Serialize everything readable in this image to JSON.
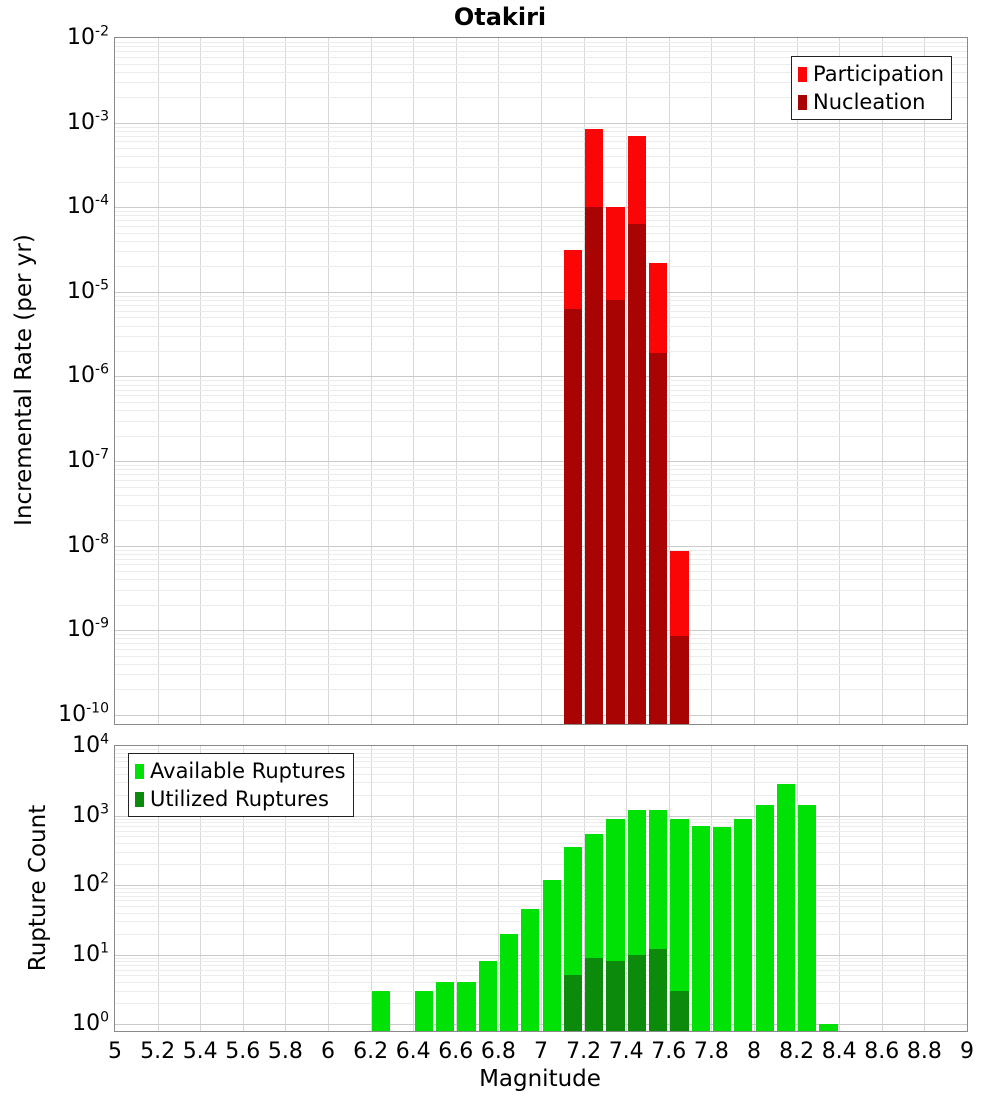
{
  "page": {
    "title": "Otakiri"
  },
  "axes": {
    "xlabel": "Magnitude",
    "x_tick_labels": [
      "5",
      "5.2",
      "5.4",
      "5.6",
      "5.8",
      "6",
      "6.2",
      "6.4",
      "6.6",
      "6.8",
      "7",
      "7.2",
      "7.4",
      "7.6",
      "7.8",
      "8",
      "8.2",
      "8.4",
      "8.6",
      "8.8",
      "9"
    ],
    "top_ylabel": "Incremental Rate (per yr)",
    "top_y_tick_exponents": [
      -2,
      -3,
      -4,
      -5,
      -6,
      -7,
      -8,
      -9,
      -10
    ],
    "bottom_ylabel": "Rupture Count",
    "bottom_y_tick_exponents": [
      4,
      3,
      2,
      1,
      0
    ]
  },
  "chart_data": [
    {
      "type": "bar",
      "title": "Otakiri",
      "xlabel": "Magnitude",
      "ylabel": "Incremental Rate (per yr)",
      "x_range": [
        5,
        9
      ],
      "y_range": [
        1e-10,
        0.01
      ],
      "y_scale": "log",
      "bin_width": 0.1,
      "grid": true,
      "legend_position": "top-right",
      "legend": [
        {
          "label": "Participation",
          "color": "#FB0607"
        },
        {
          "label": "Nucleation",
          "color": "#A80404"
        }
      ],
      "series": [
        {
          "name": "Participation",
          "color": "#FB0607",
          "bin_left_edges": [
            7.1,
            7.2,
            7.3,
            7.4,
            7.5,
            7.6
          ],
          "values": [
            3.1e-05,
            0.00085,
            0.0001,
            0.0007,
            2.2e-05,
            8.6e-09
          ]
        },
        {
          "name": "Nucleation",
          "color": "#A80404",
          "bin_left_edges": [
            7.1,
            7.2,
            7.3,
            7.4,
            7.5,
            7.6
          ],
          "values": [
            6.3e-06,
            0.0001,
            8e-06,
            6.3e-05,
            1.9e-06,
            8.5e-10
          ]
        }
      ]
    },
    {
      "type": "bar",
      "title": "",
      "xlabel": "Magnitude",
      "ylabel": "Rupture Count",
      "x_range": [
        5,
        9
      ],
      "y_range": [
        1,
        10000
      ],
      "y_scale": "log",
      "bin_width": 0.1,
      "grid": true,
      "legend_position": "top-left",
      "legend": [
        {
          "label": "Available Ruptures",
          "color": "#00E206"
        },
        {
          "label": "Utilized Ruptures",
          "color": "#0C8A0C"
        }
      ],
      "series": [
        {
          "name": "Available Ruptures",
          "color": "#00E206",
          "bin_left_edges": [
            6.2,
            6.4,
            6.5,
            6.6,
            6.7,
            6.8,
            6.9,
            7.0,
            7.1,
            7.2,
            7.3,
            7.4,
            7.5,
            7.6,
            7.7,
            7.8,
            7.9,
            8.0,
            8.1,
            8.2,
            8.3
          ],
          "values": [
            3,
            3,
            4,
            4,
            8,
            20,
            45,
            120,
            350,
            550,
            900,
            1200,
            1200,
            900,
            700,
            680,
            900,
            1400,
            2800,
            1400,
            1
          ]
        },
        {
          "name": "Utilized Ruptures",
          "color": "#0C8A0C",
          "bin_left_edges": [
            7.1,
            7.2,
            7.3,
            7.4,
            7.5,
            7.6
          ],
          "values": [
            5,
            9,
            8,
            10,
            12,
            3
          ]
        }
      ]
    }
  ]
}
